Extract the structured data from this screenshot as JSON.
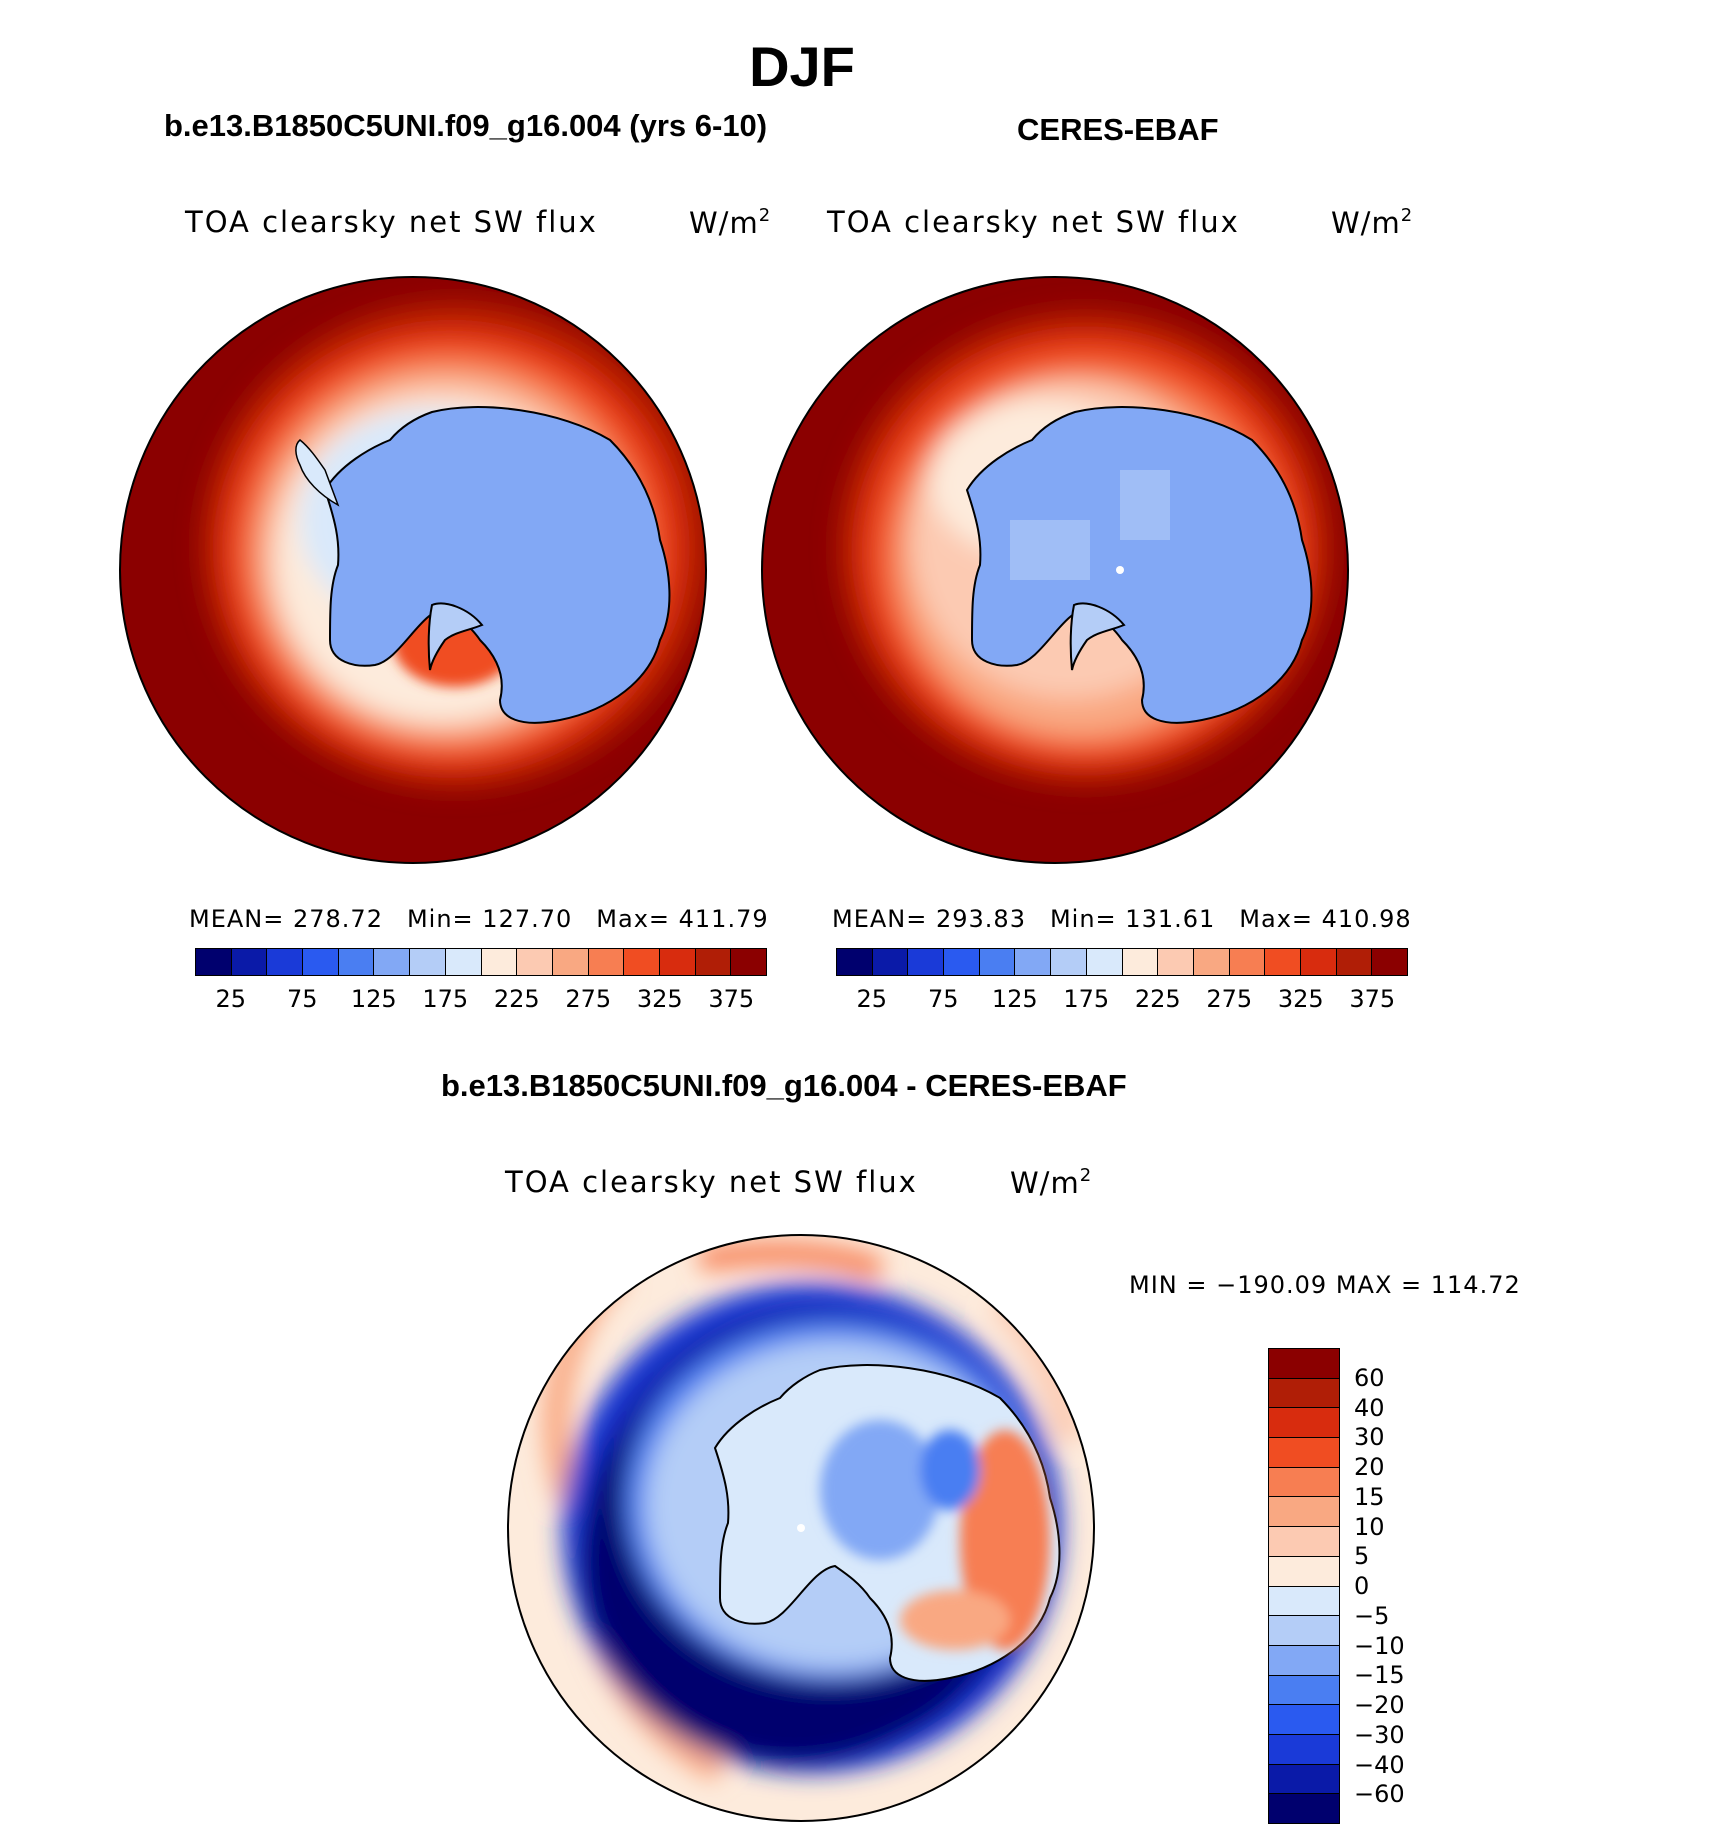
{
  "figure": {
    "season": "DJF",
    "model_case": "b.e13.B1850C5UNI.f09_g16.004 (yrs 6-10)",
    "obs_case": "CERES-EBAF",
    "diff_case": "b.e13.B1850C5UNI.f09_g16.004 - CERES-EBAF",
    "variable": "TOA clearsky net SW flux",
    "units_base": "W/m",
    "units_exp": "2"
  },
  "panels": {
    "model": {
      "mean_text": "MEAN= 278.72",
      "min_text": "Min= 127.70",
      "max_text": "Max= 411.79"
    },
    "obs": {
      "mean_text": "MEAN= 293.83",
      "min_text": "Min= 131.61",
      "max_text": "Max= 410.98"
    },
    "diff": {
      "minmax_text": "MIN = −190.09 MAX = 114.72"
    }
  },
  "colorbar_abs": {
    "colors": [
      "#00006e",
      "#0a1aa8",
      "#1a3ad8",
      "#2a5af0",
      "#4a7ef2",
      "#82a8f5",
      "#b4cdf7",
      "#d9e9fb",
      "#fdebdc",
      "#fccab2",
      "#f9a882",
      "#f77e52",
      "#f04d22",
      "#d82c0e",
      "#b01e06",
      "#8b0000"
    ],
    "tick_labels": [
      "25",
      "75",
      "125",
      "175",
      "225",
      "275",
      "325",
      "375"
    ]
  },
  "colorbar_diff": {
    "colors": [
      "#8b0000",
      "#b01e06",
      "#d82c0e",
      "#f04d22",
      "#f77e52",
      "#f9a882",
      "#fccab2",
      "#fdebdc",
      "#d9e9fb",
      "#b4cdf7",
      "#82a8f5",
      "#4a7ef2",
      "#2a5af0",
      "#1a3ad8",
      "#0a1aa8",
      "#00006e"
    ],
    "tick_labels": [
      "60",
      "40",
      "30",
      "20",
      "15",
      "10",
      "5",
      "0",
      "−5",
      "−10",
      "−15",
      "−20",
      "−30",
      "−40",
      "−60"
    ]
  },
  "chart_data": [
    {
      "type": "heatmap",
      "projection": "south-polar-stereographic",
      "title": "TOA clearsky net SW flux",
      "case": "b.e13.B1850C5UNI.f09_g16.004 (yrs 6-10)",
      "units": "W/m2",
      "mean": 278.72,
      "min": 127.7,
      "max": 411.79,
      "levels": [
        25,
        50,
        75,
        100,
        125,
        150,
        175,
        200,
        225,
        250,
        275,
        300,
        325,
        350,
        375
      ]
    },
    {
      "type": "heatmap",
      "projection": "south-polar-stereographic",
      "title": "TOA clearsky net SW flux",
      "case": "CERES-EBAF",
      "units": "W/m2",
      "mean": 293.83,
      "min": 131.61,
      "max": 410.98,
      "levels": [
        25,
        50,
        75,
        100,
        125,
        150,
        175,
        200,
        225,
        250,
        275,
        300,
        325,
        350,
        375
      ]
    },
    {
      "type": "heatmap",
      "projection": "south-polar-stereographic",
      "title": "TOA clearsky net SW flux",
      "case": "b.e13.B1850C5UNI.f09_g16.004 - CERES-EBAF",
      "units": "W/m2",
      "min": -190.09,
      "max": 114.72,
      "levels": [
        -60,
        -40,
        -30,
        -20,
        -15,
        -10,
        -5,
        0,
        5,
        10,
        15,
        20,
        30,
        40,
        60
      ]
    }
  ]
}
